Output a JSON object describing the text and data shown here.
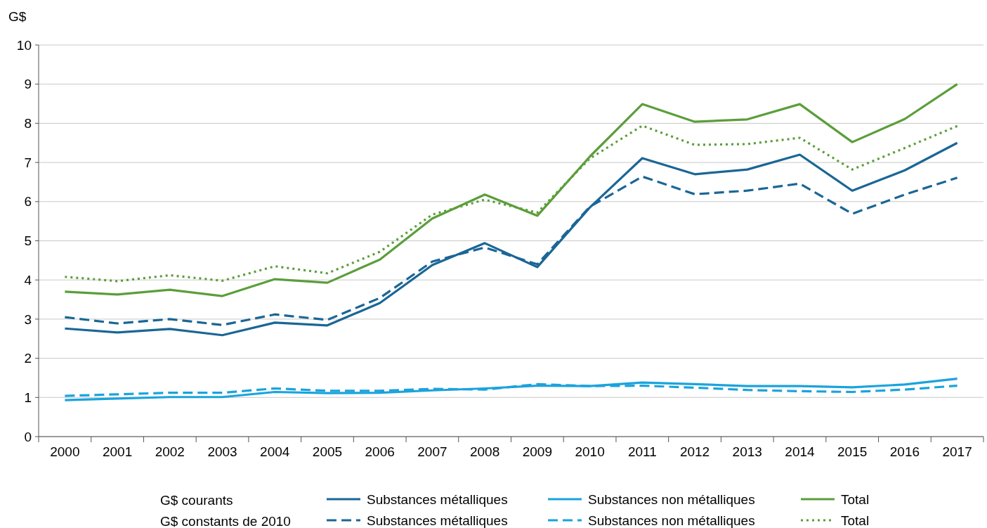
{
  "chart_data": {
    "type": "line",
    "ylabel": "G$",
    "categories": [
      "2000",
      "2001",
      "2002",
      "2003",
      "2004",
      "2005",
      "2006",
      "2007",
      "2008",
      "2009",
      "2010",
      "2011",
      "2012",
      "2013",
      "2014",
      "2015",
      "2016",
      "2017"
    ],
    "ylim": [
      0,
      10
    ],
    "yticks": [
      0,
      1,
      2,
      3,
      4,
      5,
      6,
      7,
      8,
      9,
      10
    ],
    "grid": "y",
    "legend": "bottom",
    "marker": "none",
    "annotations": [
      "G$ courants",
      "G$ constants de 2010"
    ],
    "series": [
      {
        "name": "Substances métalliques",
        "color": "#1a6696",
        "line_style": "solid",
        "values": [
          2.76,
          2.66,
          2.75,
          2.59,
          2.91,
          2.84,
          3.41,
          4.38,
          4.94,
          4.33,
          5.85,
          7.11,
          6.7,
          6.82,
          7.2,
          6.28,
          6.8,
          7.5
        ]
      },
      {
        "name": "Substances non métalliques",
        "color": "#1ba3dc",
        "line_style": "solid",
        "values": [
          0.93,
          0.97,
          1.01,
          1.01,
          1.14,
          1.11,
          1.12,
          1.18,
          1.23,
          1.3,
          1.29,
          1.38,
          1.34,
          1.29,
          1.29,
          1.26,
          1.33,
          1.48
        ]
      },
      {
        "name": "Total",
        "color": "#5b9e3a",
        "line_style": "solid",
        "values": [
          3.7,
          3.63,
          3.75,
          3.59,
          4.02,
          3.93,
          4.52,
          5.57,
          6.18,
          5.64,
          7.15,
          8.49,
          8.04,
          8.1,
          8.49,
          7.52,
          8.11,
          9.0
        ]
      },
      {
        "name": "Substances métalliques",
        "color": "#1a6696",
        "line_style": "dashed",
        "values": [
          3.05,
          2.89,
          3.0,
          2.85,
          3.12,
          2.98,
          3.54,
          4.47,
          4.83,
          4.4,
          5.87,
          6.64,
          6.19,
          6.28,
          6.46,
          5.69,
          6.18,
          6.61
        ]
      },
      {
        "name": "Substances non métalliques",
        "color": "#1ba3dc",
        "line_style": "dashed",
        "values": [
          1.04,
          1.08,
          1.12,
          1.12,
          1.23,
          1.17,
          1.17,
          1.22,
          1.2,
          1.34,
          1.29,
          1.3,
          1.25,
          1.19,
          1.16,
          1.14,
          1.2,
          1.3
        ]
      },
      {
        "name": "Total",
        "color": "#5b9e3a",
        "line_style": "dotted",
        "values": [
          4.08,
          3.97,
          4.12,
          3.98,
          4.35,
          4.17,
          4.72,
          5.67,
          6.05,
          5.72,
          7.1,
          7.94,
          7.45,
          7.47,
          7.63,
          6.82,
          7.37,
          7.93
        ]
      }
    ]
  }
}
